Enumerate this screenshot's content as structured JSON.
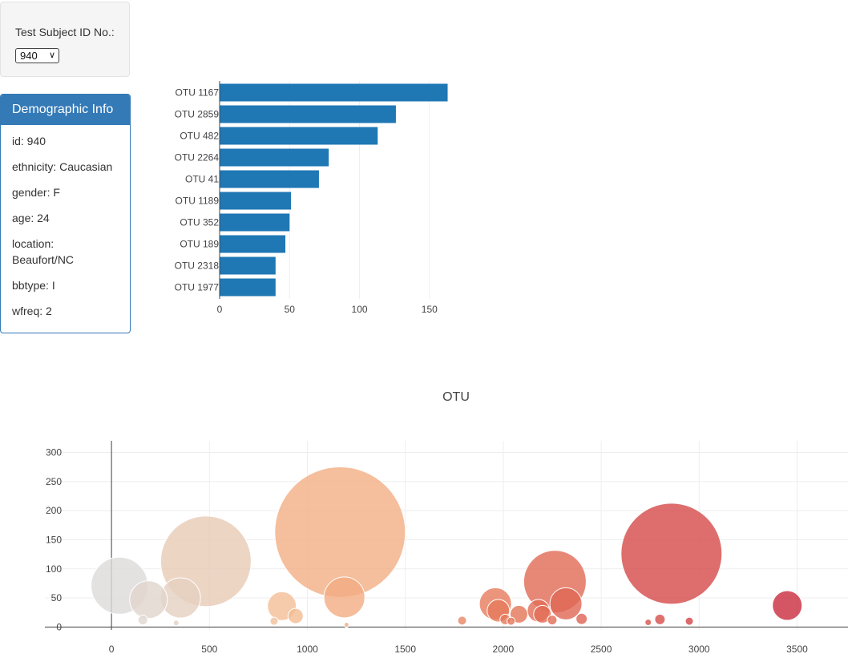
{
  "selector": {
    "label": "Test Subject ID No.:",
    "selected": "940"
  },
  "demographic": {
    "title": "Demographic Info",
    "items": [
      "id: 940",
      "ethnicity: Caucasian",
      "gender: F",
      "age: 24",
      "location: Beaufort/NC",
      "bbtype: I",
      "wfreq: 2"
    ]
  },
  "chart_data": [
    {
      "type": "bar",
      "orientation": "horizontal",
      "categories": [
        "OTU 1167",
        "OTU 2859",
        "OTU 482",
        "OTU 2264",
        "OTU 41",
        "OTU 1189",
        "OTU 352",
        "OTU 189",
        "OTU 2318",
        "OTU 1977"
      ],
      "values": [
        163,
        126,
        113,
        78,
        71,
        51,
        50,
        47,
        40,
        40
      ],
      "xlim": [
        0,
        165
      ],
      "xticks": [
        0,
        50,
        100,
        150
      ],
      "color": "#1f77b4",
      "grid": true
    },
    {
      "type": "scatter",
      "title": "OTU",
      "x": [
        41,
        189,
        352,
        482,
        1167,
        1189,
        2264,
        2859,
        3450,
        870,
        940,
        1960,
        1975,
        2080,
        2180,
        2320,
        2200,
        2250,
        2010,
        160,
        830,
        1200,
        2400,
        2800,
        2950,
        2740,
        1790,
        2040,
        330
      ],
      "y": [
        71,
        47,
        50,
        113,
        163,
        51,
        78,
        126,
        37,
        36,
        19,
        40,
        28,
        22,
        28,
        40,
        22,
        12,
        13,
        12,
        10,
        4,
        14,
        13,
        10,
        8,
        11,
        10,
        7
      ],
      "sizes": [
        71,
        47,
        50,
        113,
        163,
        51,
        78,
        126,
        37,
        36,
        19,
        40,
        28,
        22,
        28,
        40,
        22,
        12,
        13,
        12,
        10,
        4,
        14,
        13,
        10,
        8,
        11,
        10,
        7
      ],
      "xlim": [
        -340,
        3760
      ],
      "ylim": [
        -5,
        320
      ],
      "xticks": [
        0,
        500,
        1000,
        1500,
        2000,
        2500,
        3000,
        3500
      ],
      "yticks": [
        0,
        50,
        100,
        150,
        200,
        250,
        300
      ],
      "colorscale": "Earth-like gray-to-red by x",
      "grid": true
    }
  ]
}
